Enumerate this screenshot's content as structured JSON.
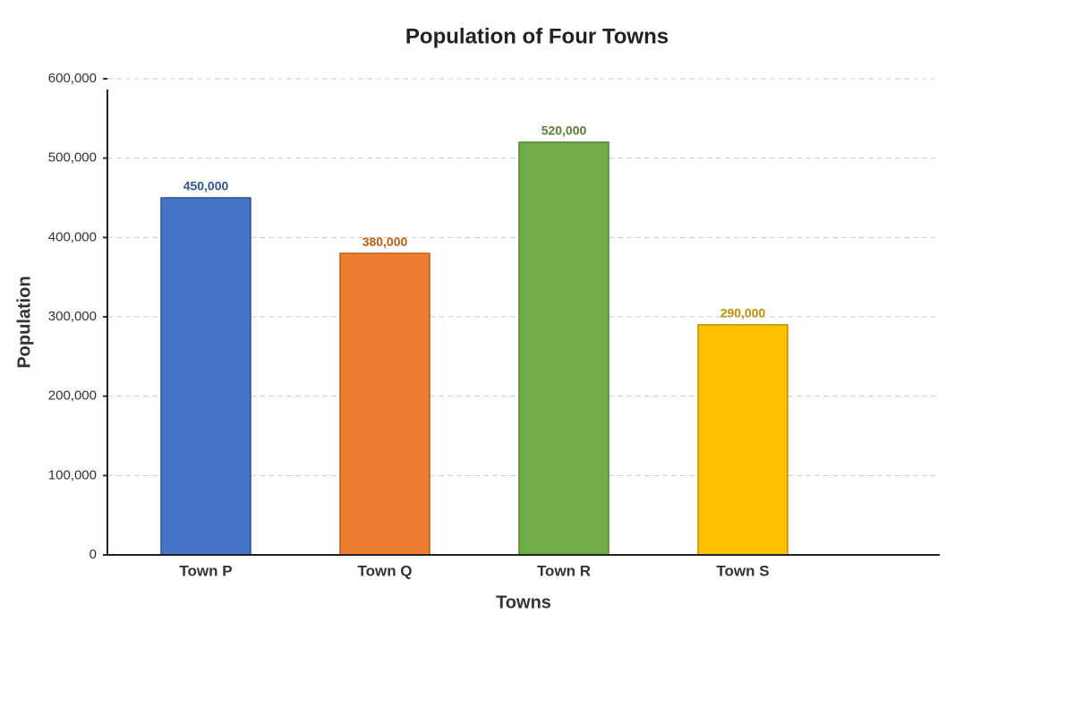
{
  "chart_data": {
    "type": "bar",
    "title": "Population of Four Towns",
    "x_label": "Towns",
    "y_label": "Population",
    "categories": [
      "Town P",
      "Town Q",
      "Town R",
      "Town S"
    ],
    "values": [
      450000,
      380000,
      520000,
      290000
    ],
    "value_labels": [
      "450,000",
      "380,000",
      "520,000",
      "290,000"
    ],
    "colors": [
      "#4472c4",
      "#ed7d31",
      "#70ad47",
      "#ffc000"
    ],
    "edge_colors": [
      "#2f5597",
      "#c55a11",
      "#548235",
      "#bf9000"
    ],
    "ylim": [
      0,
      600000
    ],
    "yticks": [
      0,
      {
        "value": 100000,
        "label": "100,000"
      },
      {
        "value": 200000,
        "label": "200,000"
      },
      {
        "value": 300000,
        "label": "300,000"
      },
      {
        "value": 400000,
        "label": "400,000"
      },
      {
        "value": 500000,
        "label": "500,000"
      },
      {
        "value": 600000,
        "label": "600,000"
      }
    ],
    "grid": true
  }
}
